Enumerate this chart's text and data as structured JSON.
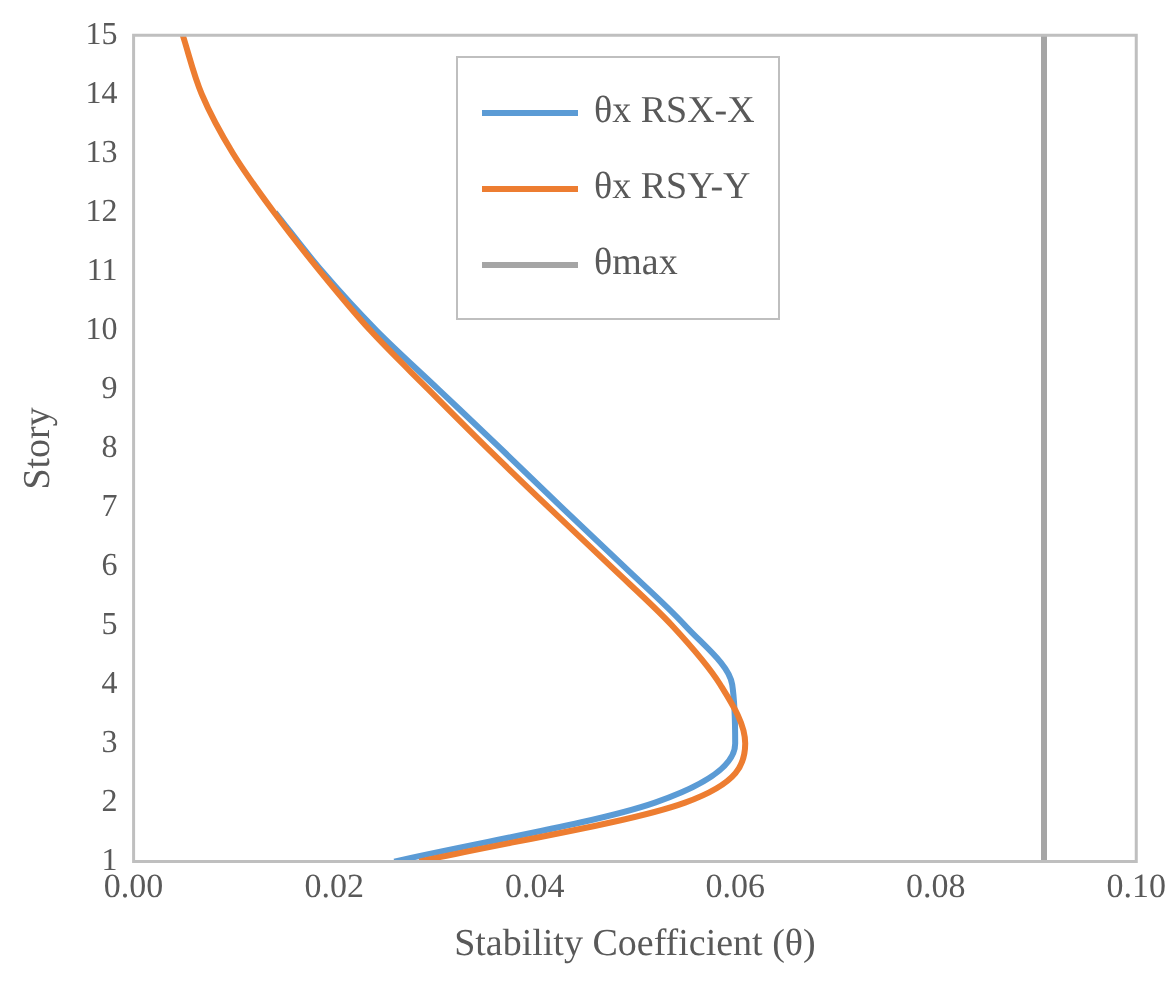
{
  "chart_data": {
    "type": "line",
    "xlabel": "Stability Coefficient (θ)",
    "ylabel": "Story",
    "xlim": [
      0,
      0.1
    ],
    "xticks": [
      {
        "value": 0,
        "label": "0.00"
      },
      {
        "value": 0.02,
        "label": "0.02"
      },
      {
        "value": 0.04,
        "label": "0.04"
      },
      {
        "value": 0.06,
        "label": "0.06"
      },
      {
        "value": 0.08,
        "label": "0.08"
      },
      {
        "value": 0.1,
        "label": "0.10"
      }
    ],
    "ylim": [
      1,
      15
    ],
    "yticks": [
      1,
      2,
      3,
      4,
      5,
      6,
      7,
      8,
      9,
      10,
      11,
      12,
      13,
      14,
      15
    ],
    "grid": false,
    "legend": "top right",
    "marker": "none",
    "series": [
      {
        "name": "θx RSX-X",
        "color": "#5b9bd5",
        "x": [
          0.026,
          0.052,
          0.06,
          0.0597,
          0.055,
          0.0489,
          0.0427,
          0.0366,
          0.0304,
          0.0242,
          0.0188,
          0.0141,
          null,
          null,
          null
        ],
        "values": [
          1,
          2,
          3,
          4,
          5,
          6,
          7,
          8,
          9,
          10,
          11,
          12,
          null,
          null,
          null
        ]
      },
      {
        "name": "θx RSY-Y",
        "color": "#ed7d31",
        "x": [
          0.0285,
          0.055,
          0.061,
          0.0585,
          0.0537,
          0.0476,
          0.0414,
          0.0353,
          0.0294,
          0.0236,
          0.0186,
          0.014,
          0.0099,
          0.0068,
          0.0049
        ],
        "values": [
          1,
          2,
          3,
          4,
          5,
          6,
          7,
          8,
          9,
          10,
          11,
          12,
          13,
          14,
          15
        ]
      },
      {
        "name": "θmax",
        "color": "#a5a5a5",
        "x": [
          0.0908,
          0.0908
        ],
        "values": [
          1,
          15
        ]
      }
    ]
  }
}
